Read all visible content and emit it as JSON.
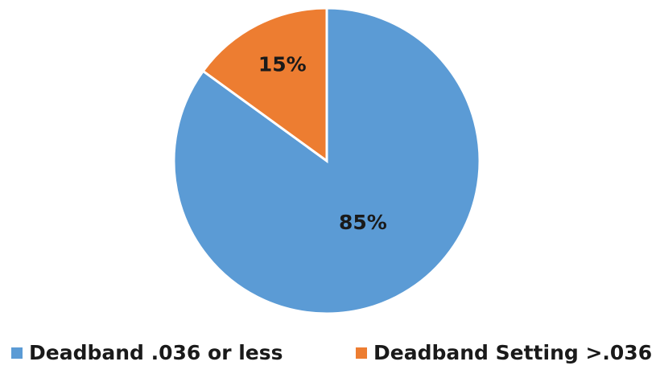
{
  "chart_data": {
    "type": "pie",
    "title": "",
    "slices": [
      {
        "label": "Deadband .036 or less",
        "value": 85,
        "display": "85%",
        "color": "#5b9bd5"
      },
      {
        "label": "Deadband Setting >.036",
        "value": 15,
        "display": "15%",
        "color": "#ed7d31"
      }
    ],
    "legend": {
      "position": "bottom"
    },
    "start_angle_deg": 0,
    "direction": "clockwise"
  }
}
